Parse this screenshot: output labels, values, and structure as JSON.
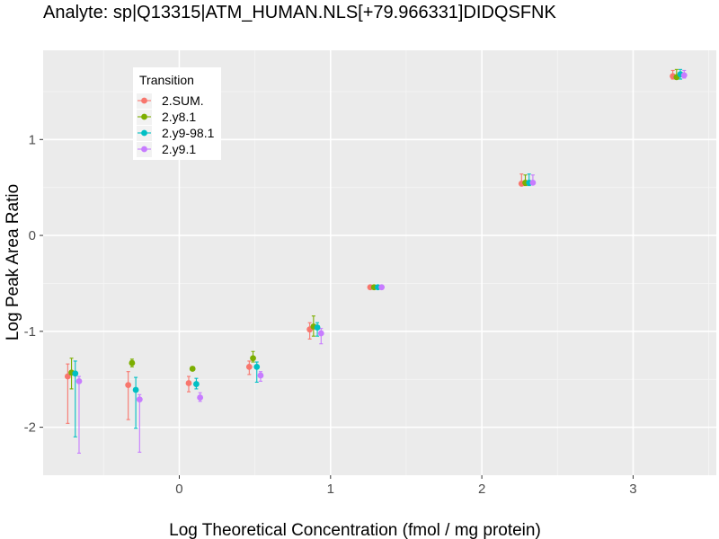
{
  "chart_data": {
    "type": "scatter",
    "title": "Analyte: sp|Q13315|ATM_HUMAN.NLS[+79.966331]DIDQSFNK",
    "xlabel": "Log Theoretical Concentration (fmol / mg protein)",
    "ylabel": "Log Peak Area Ratio",
    "xlim": [
      -0.9,
      3.55
    ],
    "ylim": [
      -2.5,
      1.93
    ],
    "x_ticks": [
      0,
      1,
      2,
      3
    ],
    "y_ticks": [
      -2,
      -1,
      0,
      1
    ],
    "x_tick_labels": [
      "0",
      "1",
      "2",
      "3"
    ],
    "y_tick_labels": [
      "-2",
      "-1",
      "0",
      "1"
    ],
    "grid": true,
    "legend": {
      "title": "Transition",
      "position": "top-left inside"
    },
    "series": [
      {
        "name": "2.SUM.",
        "color": "#F8766D",
        "points": [
          {
            "x": -0.7,
            "y": -1.47,
            "lo": -1.96,
            "hi": -1.34
          },
          {
            "x": -0.3,
            "y": -1.56,
            "lo": -1.92,
            "hi": -1.42
          },
          {
            "x": 0.1,
            "y": -1.54,
            "lo": -1.63,
            "hi": -1.47
          },
          {
            "x": 0.5,
            "y": -1.37,
            "lo": -1.45,
            "hi": -1.31
          },
          {
            "x": 0.9,
            "y": -0.98,
            "lo": -1.08,
            "hi": -0.91
          },
          {
            "x": 1.3,
            "y": -0.54,
            "lo": -0.56,
            "hi": -0.52
          },
          {
            "x": 2.3,
            "y": 0.54,
            "lo": 0.52,
            "hi": 0.64
          },
          {
            "x": 3.3,
            "y": 1.66,
            "lo": 1.63,
            "hi": 1.72
          }
        ]
      },
      {
        "name": "2.y8.1",
        "color": "#7CAE00",
        "points": [
          {
            "x": -0.7,
            "y": -1.43,
            "lo": -1.6,
            "hi": -1.28
          },
          {
            "x": -0.3,
            "y": -1.33,
            "lo": -1.37,
            "hi": -1.29
          },
          {
            "x": 0.1,
            "y": -1.39,
            "lo": -1.4,
            "hi": -1.37
          },
          {
            "x": 0.5,
            "y": -1.28,
            "lo": -1.32,
            "hi": -1.21
          },
          {
            "x": 0.9,
            "y": -0.95,
            "lo": -1.05,
            "hi": -0.84
          },
          {
            "x": 1.3,
            "y": -0.54,
            "lo": -0.56,
            "hi": -0.52
          },
          {
            "x": 2.3,
            "y": 0.55,
            "lo": 0.52,
            "hi": 0.63
          },
          {
            "x": 3.3,
            "y": 1.65,
            "lo": 1.63,
            "hi": 1.73
          }
        ]
      },
      {
        "name": "2.y9-98.1",
        "color": "#00BFC4",
        "points": [
          {
            "x": -0.7,
            "y": -1.44,
            "lo": -2.1,
            "hi": -1.31
          },
          {
            "x": -0.3,
            "y": -1.61,
            "lo": -2.01,
            "hi": -1.48
          },
          {
            "x": 0.1,
            "y": -1.55,
            "lo": -1.6,
            "hi": -1.49
          },
          {
            "x": 0.5,
            "y": -1.37,
            "lo": -1.53,
            "hi": -1.32
          },
          {
            "x": 0.9,
            "y": -0.96,
            "lo": -1.05,
            "hi": -0.91
          },
          {
            "x": 1.3,
            "y": -0.54,
            "lo": -0.56,
            "hi": -0.52
          },
          {
            "x": 2.3,
            "y": 0.55,
            "lo": 0.52,
            "hi": 0.64
          },
          {
            "x": 3.3,
            "y": 1.68,
            "lo": 1.63,
            "hi": 1.73
          }
        ]
      },
      {
        "name": "2.y9.1",
        "color": "#C77CFF",
        "points": [
          {
            "x": -0.7,
            "y": -1.52,
            "lo": -2.27,
            "hi": -1.47
          },
          {
            "x": -0.3,
            "y": -1.71,
            "lo": -2.26,
            "hi": -1.66
          },
          {
            "x": 0.1,
            "y": -1.69,
            "lo": -1.73,
            "hi": -1.64
          },
          {
            "x": 0.5,
            "y": -1.46,
            "lo": -1.52,
            "hi": -1.42
          },
          {
            "x": 0.9,
            "y": -1.02,
            "lo": -1.13,
            "hi": -0.97
          },
          {
            "x": 1.3,
            "y": -0.54,
            "lo": -0.56,
            "hi": -0.52
          },
          {
            "x": 2.3,
            "y": 0.55,
            "lo": 0.53,
            "hi": 0.63
          },
          {
            "x": 3.3,
            "y": 1.67,
            "lo": 1.64,
            "hi": 1.72
          }
        ]
      }
    ]
  }
}
